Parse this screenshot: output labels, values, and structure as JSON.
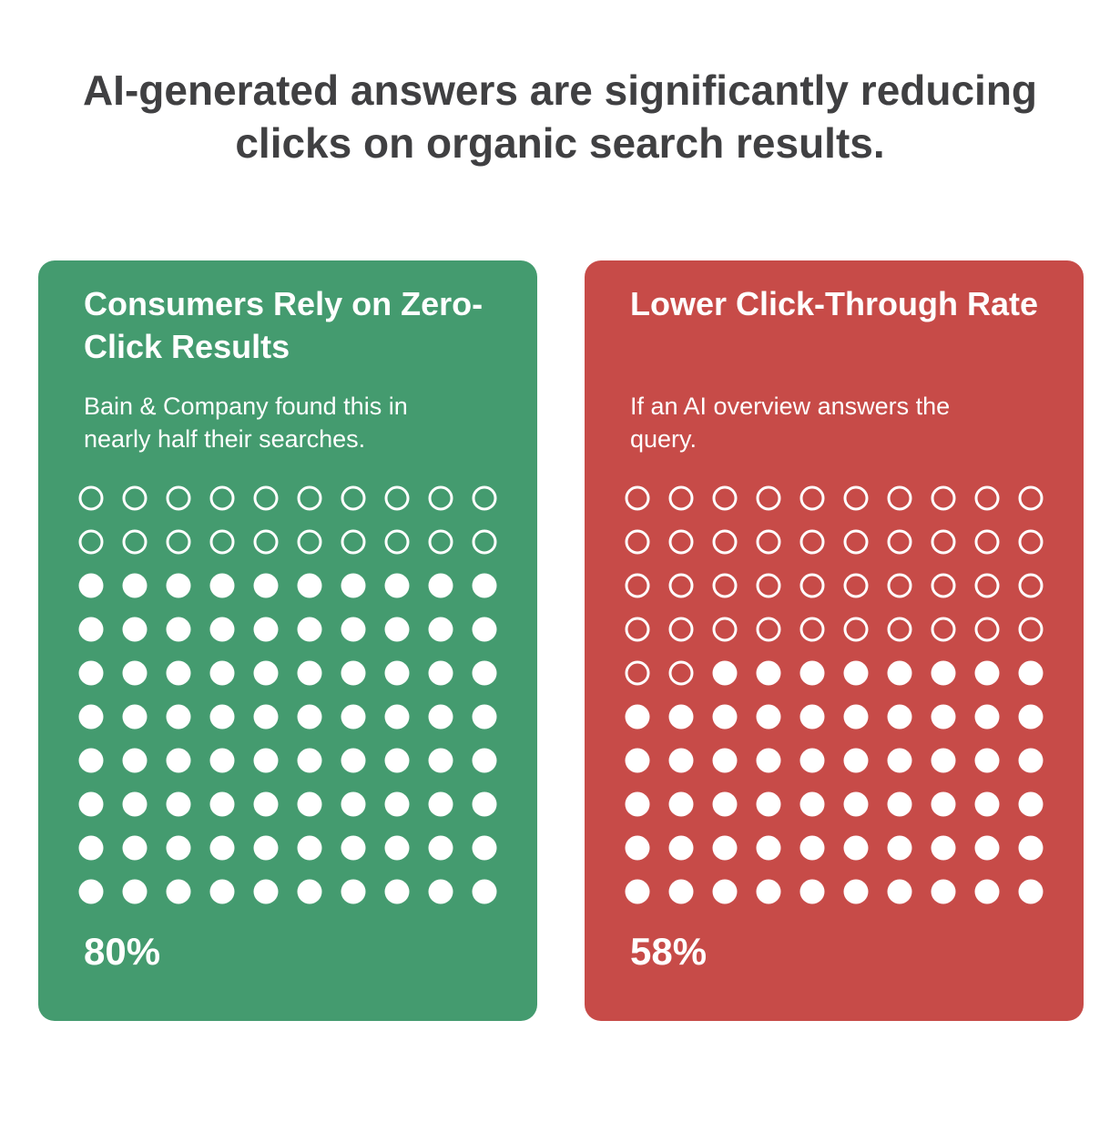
{
  "title": "AI-generated answers are significantly reducing clicks on organic search results.",
  "colors": {
    "background": "#ffffff",
    "title_text": "#404042",
    "dot": "#ffffff"
  },
  "chart_data": [
    {
      "type": "waffle",
      "title": "Consumers Rely on Zero-Click Results",
      "description": "Bain & Company found this in nearly half their searches.",
      "value": 80,
      "value_label": "80%",
      "grid": {
        "rows": 10,
        "columns": 10
      },
      "color": "#449b6f"
    },
    {
      "type": "waffle",
      "title": "Lower Click-Through Rate",
      "description": "If an AI overview answers the query.",
      "value": 58,
      "value_label": "58%",
      "grid": {
        "rows": 10,
        "columns": 10
      },
      "color": "#c74b48"
    }
  ]
}
